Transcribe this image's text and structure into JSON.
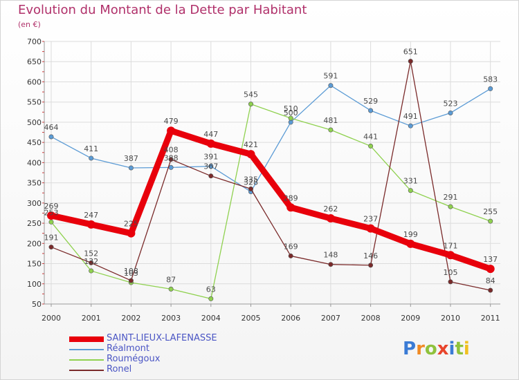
{
  "title": "Evolution du Montant de la Dette par Habitant",
  "subtitle": "(en €)",
  "logo": {
    "text": "Proxiti",
    "colors": [
      "#3a7bd5",
      "#f08a24",
      "#8fc23c",
      "#e8452c",
      "#3a7bd5",
      "#8fc23c",
      "#f0c020"
    ]
  },
  "chart_data": {
    "type": "line",
    "x": [
      "2000",
      "2001",
      "2002",
      "2003",
      "2004",
      "2005",
      "2006",
      "2007",
      "2008",
      "2009",
      "2010",
      "2011"
    ],
    "ylim": [
      50,
      700
    ],
    "yticks": [
      50,
      100,
      150,
      200,
      250,
      300,
      350,
      400,
      450,
      500,
      550,
      600,
      650,
      700
    ],
    "grid": true,
    "legend_position": "bottom-left",
    "series": [
      {
        "name": "SAINT-LIEUX-LAFENASSE",
        "color": "#e8000b",
        "values": [
          269,
          247,
          225,
          479,
          447,
          421,
          289,
          262,
          237,
          199,
          171,
          137
        ]
      },
      {
        "name": "Réalmont",
        "color": "#5b9bd5",
        "values": [
          464,
          411,
          387,
          388,
          391,
          328,
          500,
          591,
          529,
          491,
          523,
          583
        ]
      },
      {
        "name": "Roumégoux",
        "color": "#8fd14f",
        "values": [
          253,
          132,
          103,
          87,
          63,
          545,
          510,
          481,
          441,
          331,
          291,
          255
        ]
      },
      {
        "name": "Ronel",
        "color": "#7a2a2a",
        "values": [
          191,
          152,
          108,
          408,
          367,
          335,
          169,
          148,
          146,
          651,
          105,
          84
        ]
      }
    ]
  }
}
